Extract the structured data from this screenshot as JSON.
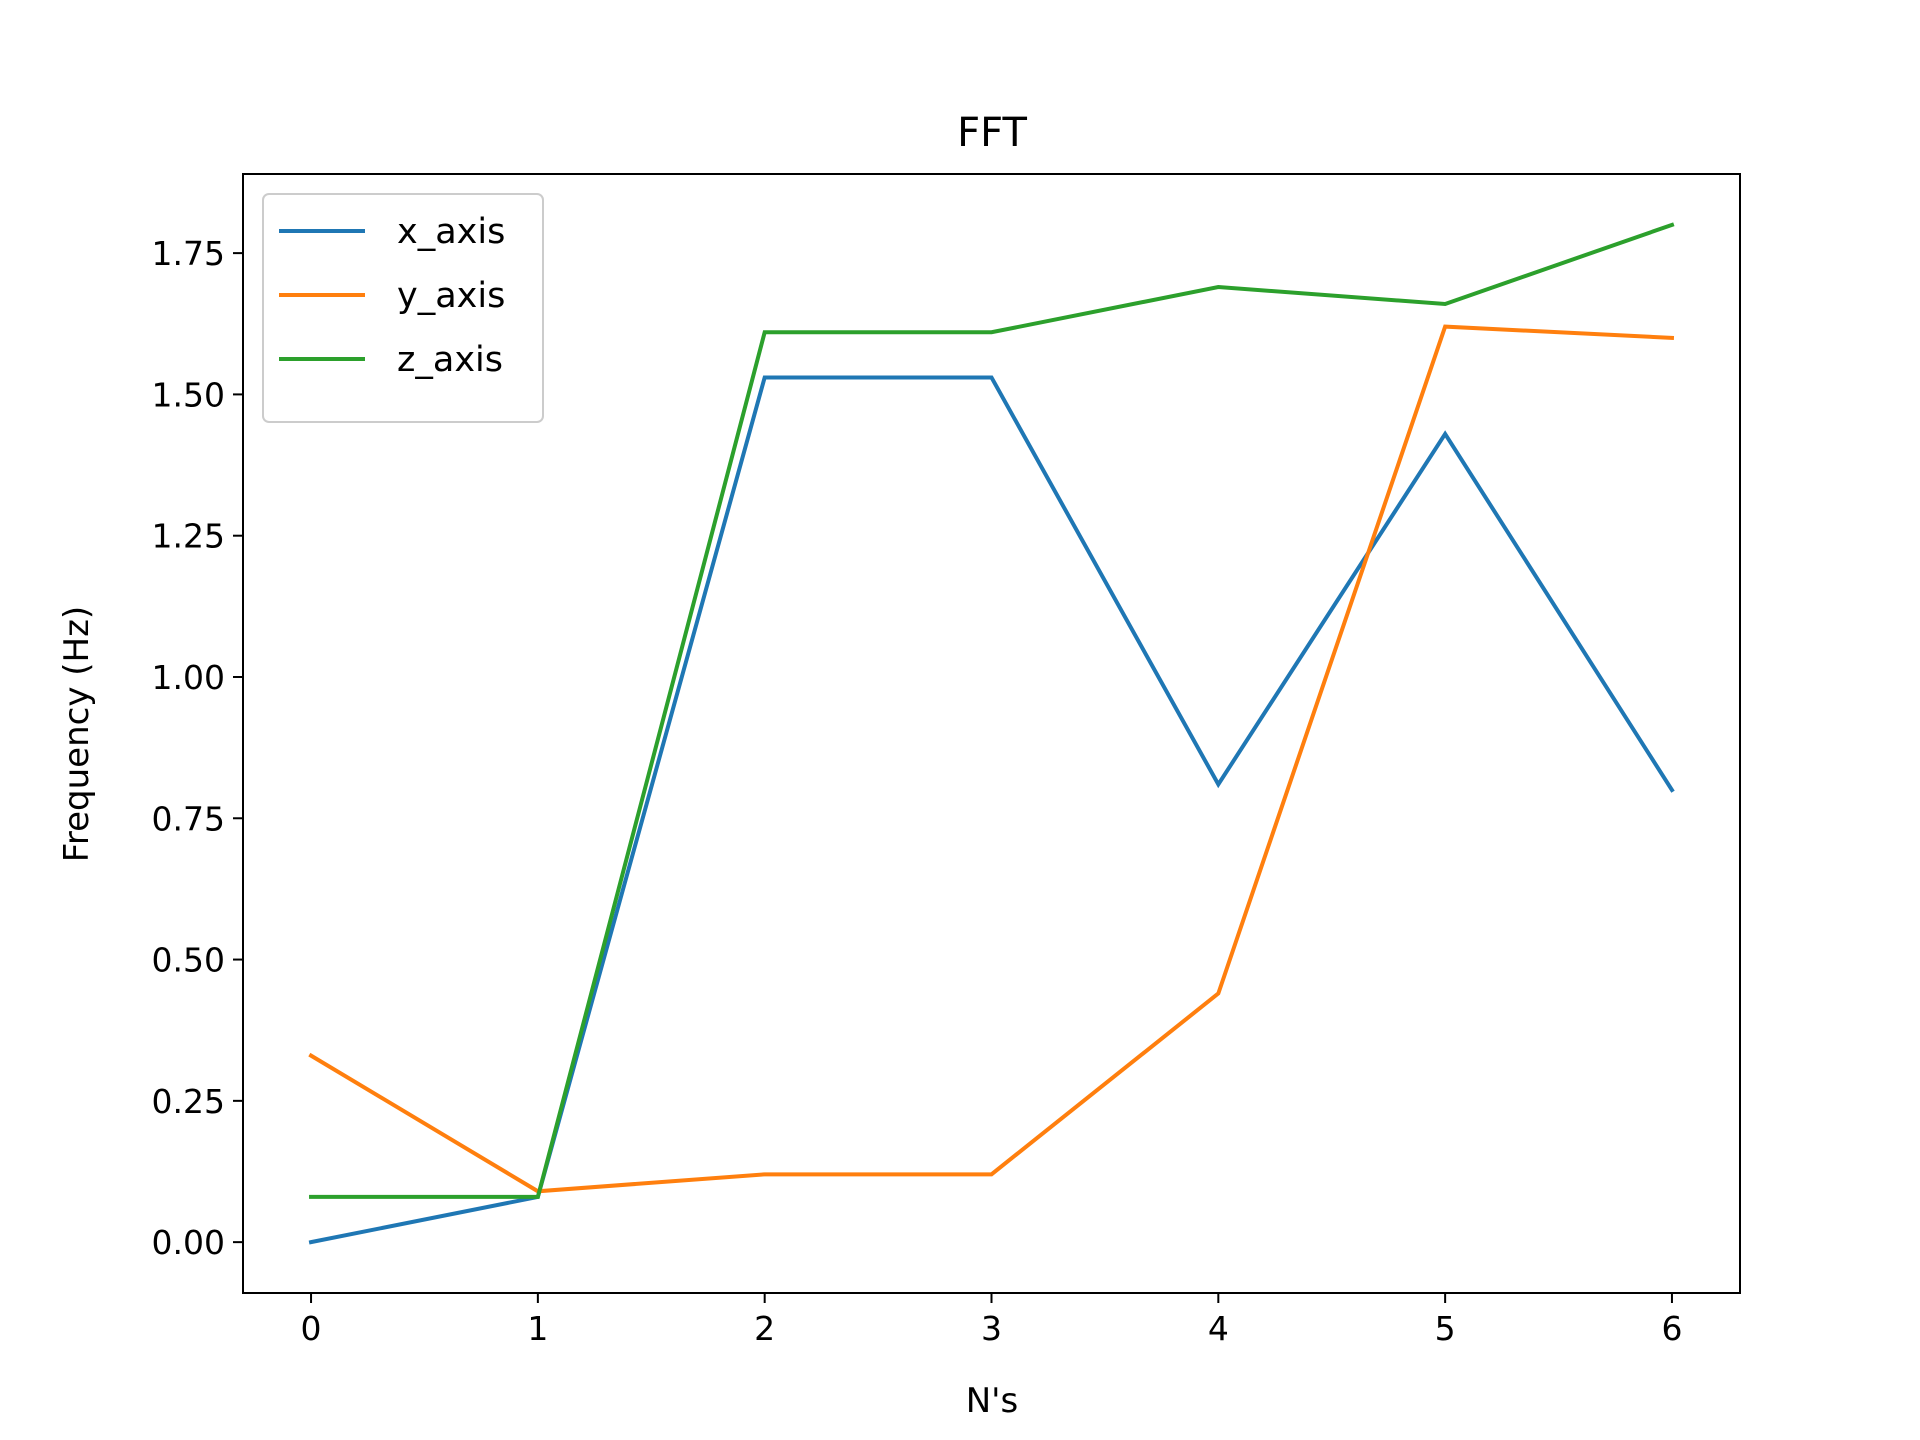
{
  "chart_data": {
    "type": "line",
    "title": "FFT",
    "xlabel": "N's",
    "ylabel": "Frequency (Hz)",
    "x": [
      0,
      1,
      2,
      3,
      4,
      5,
      6
    ],
    "xlim": [
      -0.3,
      6.3
    ],
    "ylim": [
      -0.09,
      1.89
    ],
    "xticks": [
      0,
      1,
      2,
      3,
      4,
      5,
      6
    ],
    "yticks": [
      0.0,
      0.25,
      0.5,
      0.75,
      1.0,
      1.25,
      1.5,
      1.75
    ],
    "ytick_labels": [
      "0.00",
      "0.25",
      "0.50",
      "0.75",
      "1.00",
      "1.25",
      "1.50",
      "1.75"
    ],
    "grid": false,
    "legend_position": "upper left",
    "series": [
      {
        "name": "x_axis",
        "color": "#1f77b4",
        "values": [
          0.0,
          0.08,
          1.53,
          1.53,
          0.81,
          1.43,
          0.8
        ]
      },
      {
        "name": "y_axis",
        "color": "#ff7f0e",
        "values": [
          0.33,
          0.09,
          0.12,
          0.12,
          0.44,
          1.62,
          1.6
        ]
      },
      {
        "name": "z_axis",
        "color": "#2ca02c",
        "values": [
          0.08,
          0.08,
          1.61,
          1.61,
          1.69,
          1.66,
          1.8
        ]
      }
    ]
  }
}
